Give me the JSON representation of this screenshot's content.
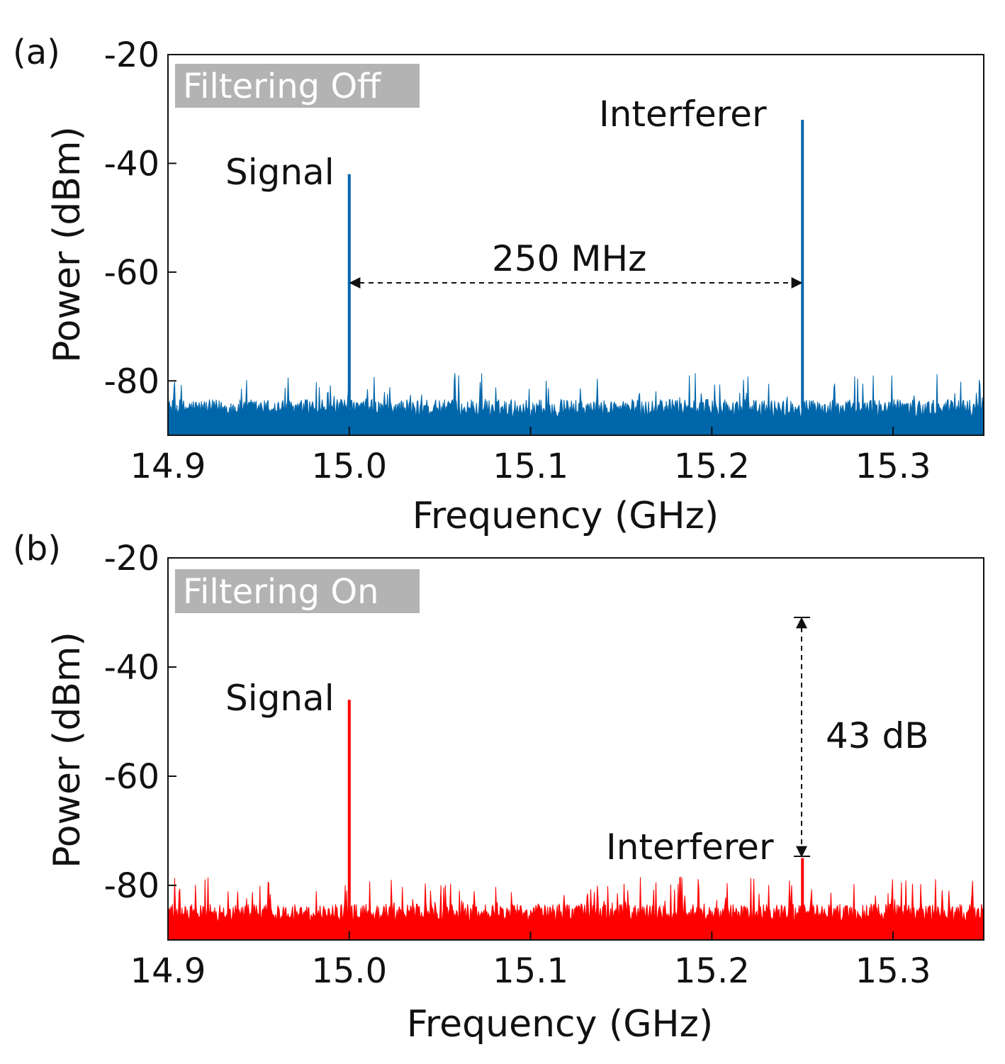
{
  "chart_data": [
    {
      "type": "line",
      "panel_label": "(a)",
      "badge": "Filtering Off",
      "xlabel": "Frequency (GHz)",
      "ylabel": "Power (dBm)",
      "xlim": [
        14.9,
        15.35
      ],
      "ylim": [
        -90,
        -20
      ],
      "xticks": [
        14.9,
        15.0,
        15.1,
        15.2,
        15.3
      ],
      "xtick_labels": [
        "14.9",
        "15.0",
        "15.1",
        "15.2",
        "15.3"
      ],
      "yticks": [
        -20,
        -40,
        -60,
        -80
      ],
      "ytick_labels": [
        "-20",
        "-40",
        "-60",
        "-80"
      ],
      "color": "#0066aa",
      "noise_floor_dbm": -85,
      "noise_peak_dbm": -80,
      "series": [
        {
          "x": [
            15.0,
            15.25
          ],
          "y": [
            -42,
            -32
          ]
        }
      ],
      "peak_labels": [
        "Signal",
        "Interferer"
      ],
      "span_annotation": {
        "label": "250 MHz",
        "x": [
          15.0,
          15.25
        ],
        "y": -62
      }
    },
    {
      "type": "line",
      "panel_label": "(b)",
      "badge": "Filtering On",
      "xlabel": "Frequency (GHz)",
      "ylabel": "Power (dBm)",
      "xlim": [
        14.9,
        15.35
      ],
      "ylim": [
        -90,
        -20
      ],
      "xticks": [
        14.9,
        15.0,
        15.1,
        15.2,
        15.3
      ],
      "xtick_labels": [
        "14.9",
        "15.0",
        "15.1",
        "15.2",
        "15.3"
      ],
      "yticks": [
        -20,
        -40,
        -60,
        -80
      ],
      "ytick_labels": [
        "-20",
        "-40",
        "-60",
        "-80"
      ],
      "color": "#ff0000",
      "noise_floor_dbm": -85,
      "noise_peak_dbm": -80,
      "series": [
        {
          "x": [
            15.0,
            15.25
          ],
          "y": [
            -46,
            -75
          ]
        }
      ],
      "peak_labels": [
        "Signal",
        "Interferer"
      ],
      "span_annotation": {
        "label": "43 dB",
        "x": 15.25,
        "y": [
          -31,
          -75
        ]
      }
    }
  ]
}
